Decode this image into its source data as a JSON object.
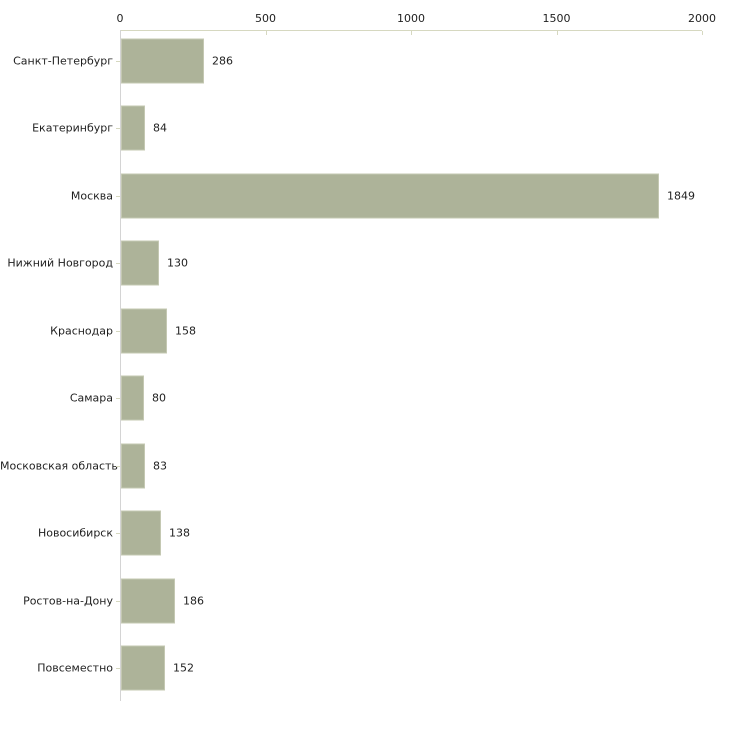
{
  "chart_data": {
    "type": "bar",
    "orientation": "horizontal",
    "title": "",
    "xlabel": "",
    "ylabel": "",
    "categories": [
      "Санкт-Петербург",
      "Екатеринбург",
      "Москва",
      "Нижний Новгород",
      "Краснодар",
      "Самара",
      "Московская область",
      "Новосибирск",
      "Ростов-на-Дону",
      "Повсеместно"
    ],
    "values": [
      286,
      84,
      1849,
      130,
      158,
      80,
      83,
      138,
      186,
      152
    ],
    "value_labels": [
      "286",
      "84",
      "1849",
      "130",
      "158",
      "80",
      "83",
      "138",
      "186",
      "152"
    ],
    "x_ticks": [
      0,
      500,
      1000,
      1500,
      2000
    ],
    "x_tick_labels": [
      "0",
      "500",
      "1000",
      "1500",
      "2000"
    ],
    "xlim": [
      0,
      2000
    ],
    "grid": false,
    "legend": false,
    "axis_position": "top",
    "colors": {
      "bar_fill": "#adb399",
      "bar_border": "#c4c8b2",
      "axis_line_horizontal": "#d6d8c0",
      "axis_line_vertical": "#d4d4d4",
      "tick_mark": "#d6d8c0",
      "text": "#1f1f1f",
      "background": "#ffffff"
    }
  }
}
